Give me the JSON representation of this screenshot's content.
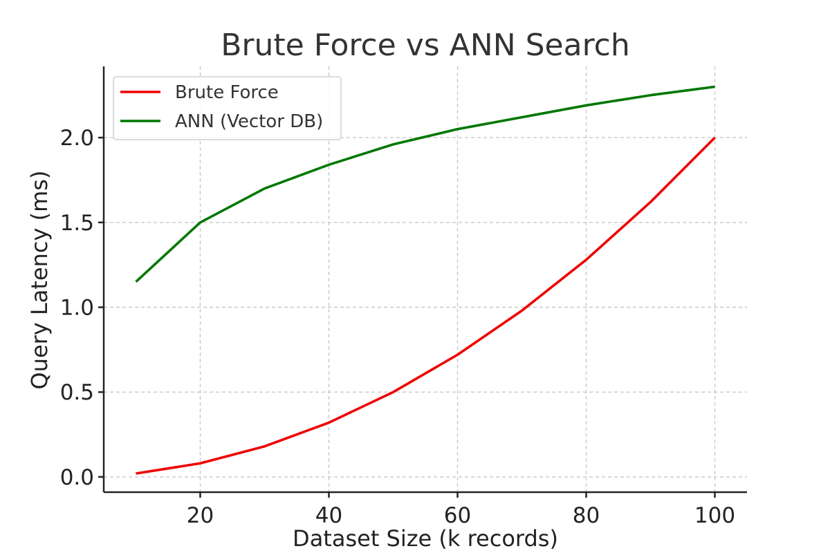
{
  "chart_data": {
    "type": "line",
    "title": "Brute Force vs ANN Search",
    "xlabel": "Dataset Size (k records)",
    "ylabel": "Query Latency (ms)",
    "x": [
      10,
      20,
      30,
      40,
      50,
      60,
      70,
      80,
      90,
      100
    ],
    "series": [
      {
        "name": "Brute Force",
        "color": "#ee0000",
        "values": [
          0.02,
          0.08,
          0.18,
          0.32,
          0.5,
          0.72,
          0.98,
          1.28,
          1.62,
          2.0
        ]
      },
      {
        "name": "ANN (Vector DB)",
        "color": "#007700",
        "values": [
          1.15,
          1.5,
          1.7,
          1.84,
          1.96,
          2.05,
          2.12,
          2.19,
          2.25,
          2.3
        ]
      }
    ],
    "xlim": [
      5,
      105
    ],
    "ylim": [
      -0.09,
      2.42
    ],
    "xticks": [
      20,
      40,
      60,
      80,
      100
    ],
    "xtick_labels": [
      "20",
      "40",
      "60",
      "80",
      "100"
    ],
    "yticks": [
      0.0,
      0.5,
      1.0,
      1.5,
      2.0
    ],
    "ytick_labels": [
      "0.0",
      "0.5",
      "1.0",
      "1.5",
      "2.0"
    ],
    "grid": true,
    "legend_position": "top-left"
  }
}
